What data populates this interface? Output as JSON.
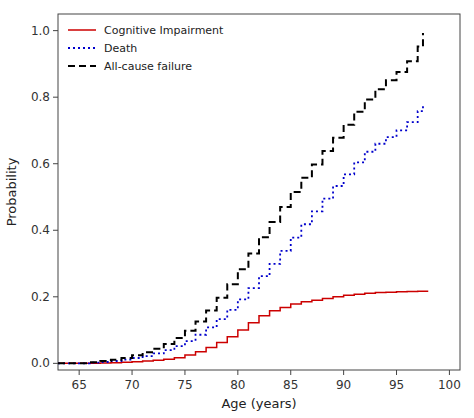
{
  "chart_data": {
    "type": "step",
    "xlabel": "Age (years)",
    "ylabel": "Probability",
    "xlim": [
      63,
      101
    ],
    "ylim": [
      -0.02,
      1.05
    ],
    "xticks": [
      65,
      70,
      75,
      80,
      85,
      90,
      95,
      100
    ],
    "yticks": [
      {
        "value": 0.0,
        "label": "0.0"
      },
      0.2,
      0.4,
      0.6,
      0.8,
      {
        "value": 1.0,
        "label": "1.0"
      }
    ],
    "grid": false,
    "legend": "upper-left",
    "series": [
      {
        "name": "Cognitive Impairment",
        "color": "#cc0000",
        "line_style": "solid",
        "x": [
          63,
          65,
          66,
          67,
          68,
          69,
          70,
          71,
          72,
          73,
          74,
          75,
          76,
          77,
          78,
          79,
          80,
          81,
          82,
          83,
          84,
          85,
          86,
          87,
          88,
          89,
          90,
          91,
          92,
          93,
          94,
          95,
          96,
          97,
          98
        ],
        "values": [
          0.0,
          0.0,
          0.0,
          0.001,
          0.002,
          0.003,
          0.005,
          0.007,
          0.009,
          0.012,
          0.017,
          0.025,
          0.035,
          0.048,
          0.063,
          0.08,
          0.1,
          0.122,
          0.143,
          0.158,
          0.168,
          0.178,
          0.185,
          0.19,
          0.195,
          0.2,
          0.205,
          0.208,
          0.211,
          0.213,
          0.214,
          0.215,
          0.216,
          0.217,
          0.217
        ]
      },
      {
        "name": "Death",
        "color": "#0000cc",
        "line_style": "dotted",
        "x": [
          63,
          65,
          66,
          67,
          68,
          69,
          70,
          71,
          72,
          73,
          74,
          75,
          76,
          77,
          78,
          79,
          80,
          81,
          82,
          83,
          84,
          85,
          86,
          87,
          88,
          89,
          90,
          91,
          92,
          93,
          94,
          95,
          96,
          97,
          97.5
        ],
        "values": [
          0.0,
          0.0,
          0.002,
          0.004,
          0.007,
          0.011,
          0.016,
          0.022,
          0.03,
          0.04,
          0.052,
          0.067,
          0.086,
          0.108,
          0.133,
          0.161,
          0.192,
          0.226,
          0.262,
          0.299,
          0.338,
          0.378,
          0.418,
          0.457,
          0.495,
          0.533,
          0.568,
          0.604,
          0.636,
          0.66,
          0.68,
          0.7,
          0.725,
          0.758,
          0.78
        ]
      },
      {
        "name": "All-cause failure",
        "color": "#000000",
        "line_style": "dashed",
        "x": [
          63,
          65,
          66,
          67,
          68,
          69,
          70,
          71,
          72,
          73,
          74,
          75,
          76,
          77,
          78,
          79,
          80,
          81,
          82,
          83,
          84,
          85,
          86,
          87,
          88,
          89,
          90,
          91,
          92,
          93,
          94,
          95,
          96,
          97,
          97.5
        ],
        "values": [
          0.0,
          0.0,
          0.003,
          0.007,
          0.011,
          0.016,
          0.024,
          0.033,
          0.044,
          0.058,
          0.076,
          0.098,
          0.126,
          0.159,
          0.197,
          0.238,
          0.283,
          0.33,
          0.379,
          0.425,
          0.47,
          0.515,
          0.558,
          0.598,
          0.638,
          0.678,
          0.717,
          0.756,
          0.793,
          0.824,
          0.851,
          0.876,
          0.908,
          0.952,
          0.993
        ]
      }
    ]
  }
}
